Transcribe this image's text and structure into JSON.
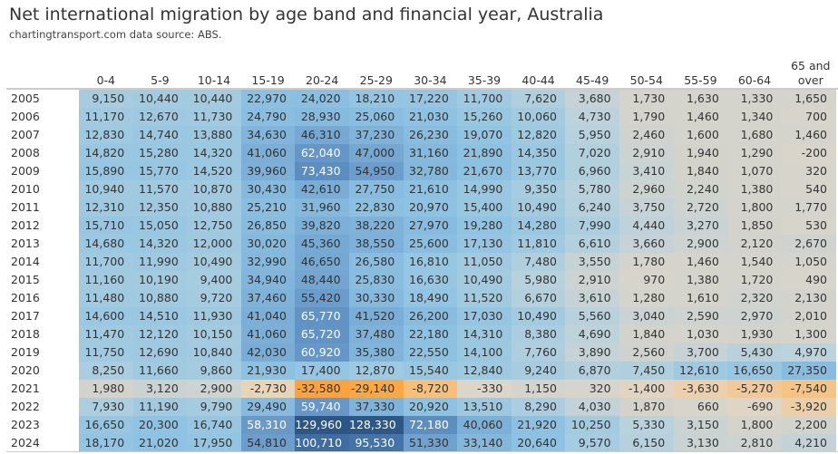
{
  "title": "Net international migration by age band and financial year, Australia",
  "subtitle": "chartingtransport.com   data source: ABS.",
  "chart_data": {
    "type": "heatmap",
    "title": "Net international migration by age band and financial year, Australia",
    "columns": [
      "0-4",
      "5-9",
      "10-14",
      "15-19",
      "20-24",
      "25-29",
      "30-34",
      "35-39",
      "40-44",
      "45-49",
      "50-54",
      "55-59",
      "60-64",
      "65 and over"
    ],
    "rows": [
      "2005",
      "2006",
      "2007",
      "2008",
      "2009",
      "2010",
      "2011",
      "2012",
      "2013",
      "2014",
      "2015",
      "2016",
      "2017",
      "2018",
      "2019",
      "2020",
      "2021",
      "2022",
      "2023",
      "2024"
    ],
    "values": [
      [
        9150,
        10440,
        10440,
        22970,
        24020,
        18210,
        17220,
        11700,
        7620,
        3680,
        1730,
        1630,
        1330,
        1650
      ],
      [
        11170,
        12670,
        11730,
        24790,
        28930,
        25060,
        21030,
        15260,
        10060,
        4730,
        1790,
        1460,
        1340,
        700
      ],
      [
        12830,
        14740,
        13880,
        34630,
        46310,
        37230,
        26230,
        19070,
        12820,
        5950,
        2460,
        1600,
        1680,
        1460
      ],
      [
        14820,
        15280,
        14320,
        41060,
        62040,
        47000,
        31160,
        21890,
        14350,
        7020,
        2910,
        1940,
        1290,
        -200
      ],
      [
        15890,
        15770,
        14520,
        39960,
        73430,
        54950,
        32780,
        21670,
        13770,
        6960,
        3410,
        1840,
        1070,
        320
      ],
      [
        10940,
        11570,
        10870,
        30430,
        42610,
        27750,
        21610,
        14990,
        9350,
        5780,
        2960,
        2240,
        1380,
        540
      ],
      [
        12310,
        12350,
        10880,
        25210,
        31960,
        22830,
        20970,
        15400,
        10490,
        6240,
        3750,
        2720,
        1800,
        1770
      ],
      [
        15710,
        15050,
        12750,
        26850,
        39820,
        38220,
        27970,
        19280,
        14280,
        7990,
        4440,
        3270,
        1850,
        530
      ],
      [
        14680,
        14320,
        12000,
        30020,
        45360,
        38550,
        25600,
        17130,
        11810,
        6610,
        3660,
        2900,
        2120,
        2670
      ],
      [
        11700,
        11990,
        10490,
        32990,
        46650,
        26580,
        16810,
        11050,
        7480,
        3550,
        1780,
        1460,
        1540,
        1050
      ],
      [
        11160,
        10190,
        9400,
        34940,
        48440,
        25830,
        16630,
        10490,
        5980,
        2910,
        970,
        1380,
        1720,
        490
      ],
      [
        11480,
        10880,
        9720,
        37460,
        55420,
        30330,
        18490,
        11520,
        6670,
        3610,
        1280,
        1610,
        2320,
        2130
      ],
      [
        14600,
        14510,
        11930,
        41040,
        65770,
        41520,
        26200,
        17030,
        10490,
        5560,
        3040,
        2590,
        2970,
        2010
      ],
      [
        11470,
        12120,
        10150,
        41060,
        65720,
        37480,
        22180,
        14310,
        8380,
        4690,
        1840,
        1030,
        1930,
        1300
      ],
      [
        11750,
        12690,
        10840,
        42030,
        60920,
        35380,
        22550,
        14100,
        7760,
        3890,
        2560,
        3700,
        5430,
        4970
      ],
      [
        8250,
        11660,
        9860,
        21930,
        17400,
        12870,
        15540,
        12840,
        9240,
        6870,
        7450,
        12610,
        16650,
        27350
      ],
      [
        1980,
        3120,
        2900,
        -2730,
        -32580,
        -29140,
        -8720,
        -330,
        1150,
        320,
        -1400,
        -3630,
        -5270,
        -7540
      ],
      [
        7930,
        11190,
        9790,
        29490,
        59740,
        37330,
        20920,
        13510,
        8290,
        4030,
        1870,
        660,
        -690,
        -3920
      ],
      [
        16650,
        20300,
        16740,
        58310,
        129960,
        128330,
        72180,
        40060,
        21920,
        10250,
        5330,
        3150,
        1800,
        2200
      ],
      [
        18170,
        21020,
        17950,
        54810,
        100710,
        95530,
        51330,
        33140,
        20640,
        9570,
        6150,
        3130,
        2810,
        4210
      ]
    ],
    "legend": "none"
  }
}
